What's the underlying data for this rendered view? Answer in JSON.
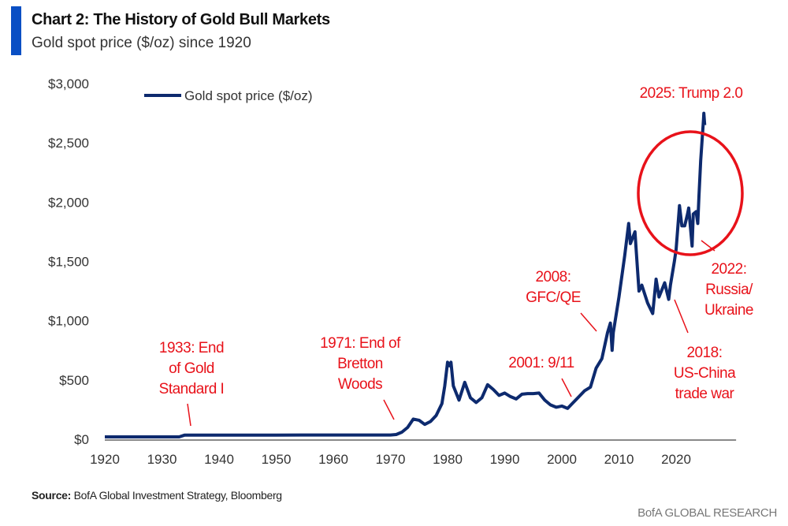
{
  "header": {
    "title": "Chart 2: The History of Gold Bull Markets",
    "subtitle": "Gold spot price ($/oz) since 1920",
    "accent_color": "#0a4fc4"
  },
  "footer": {
    "source_label": "Source:",
    "source_text": " BofA Global Investment Strategy, Bloomberg",
    "brand": "BofA GLOBAL RESEARCH"
  },
  "chart_data": {
    "type": "line",
    "title": "Chart 2: The History of Gold Bull Markets",
    "subtitle": "Gold spot price ($/oz) since 1920",
    "xlim": [
      1920,
      2030
    ],
    "ylim": [
      0,
      3000
    ],
    "x_ticks": [
      "1920",
      "1930",
      "1940",
      "1950",
      "1960",
      "1970",
      "1980",
      "1990",
      "2000",
      "2010",
      "2020"
    ],
    "y_ticks": [
      "$0",
      "$500",
      "$1,000",
      "$1,500",
      "$2,000",
      "$2,500",
      "$3,000"
    ],
    "grid": false,
    "legend": "top-left",
    "series_color": "#0d2a6e",
    "annotation_color": "#e8121a",
    "series": [
      {
        "name": "Gold spot price ($/oz)",
        "x": [
          1920,
          1933,
          1934,
          1950,
          1970,
          1971,
          1972,
          1973,
          1974,
          1975,
          1976,
          1977,
          1978,
          1979,
          1979.5,
          1980,
          1980.3,
          1980.6,
          1981,
          1982,
          1983,
          1984,
          1985,
          1986,
          1987,
          1988,
          1989,
          1990,
          1991,
          1992,
          1993,
          1994,
          1995,
          1996,
          1997,
          1998,
          1999,
          2000,
          2001,
          2002,
          2003,
          2004,
          2005,
          2006,
          2007,
          2008,
          2008.5,
          2008.8,
          2009,
          2010,
          2011,
          2011.7,
          2012,
          2012.8,
          2013,
          2013.5,
          2014,
          2015,
          2015.9,
          2016.5,
          2017,
          2018,
          2018.7,
          2019,
          2019.7,
          2020,
          2020.6,
          2021,
          2021.5,
          2022,
          2022.2,
          2022.8,
          2023,
          2023.5,
          2023.8,
          2024,
          2024.3,
          2024.8,
          2024.85,
          2025
        ],
        "y": [
          20,
          20,
          35,
          35,
          36,
          40,
          60,
          100,
          170,
          160,
          125,
          150,
          200,
          300,
          450,
          650,
          620,
          650,
          450,
          330,
          480,
          350,
          310,
          350,
          460,
          420,
          370,
          390,
          360,
          340,
          380,
          385,
          385,
          390,
          330,
          290,
          270,
          280,
          260,
          310,
          360,
          410,
          440,
          600,
          680,
          900,
          980,
          750,
          900,
          1200,
          1550,
          1820,
          1650,
          1750,
          1600,
          1250,
          1300,
          1150,
          1060,
          1350,
          1200,
          1320,
          1180,
          1300,
          1500,
          1600,
          1970,
          1800,
          1800,
          1900,
          1950,
          1630,
          1900,
          1920,
          1820,
          2050,
          2350,
          2700,
          2750,
          2650
        ]
      }
    ],
    "annotations": [
      {
        "lines": [
          "1933: End",
          "of Gold",
          "Standard I"
        ]
      },
      {
        "lines": [
          "1971: End of",
          "Bretton",
          "Woods"
        ]
      },
      {
        "lines": [
          "2001: 9/11"
        ]
      },
      {
        "lines": [
          "2008:",
          "GFC/QE"
        ]
      },
      {
        "lines": [
          "2018:",
          "US-China",
          "trade war"
        ]
      },
      {
        "lines": [
          "2022:",
          "Russia/",
          "Ukraine"
        ]
      },
      {
        "lines": [
          "2025: Trump 2.0"
        ]
      }
    ]
  }
}
